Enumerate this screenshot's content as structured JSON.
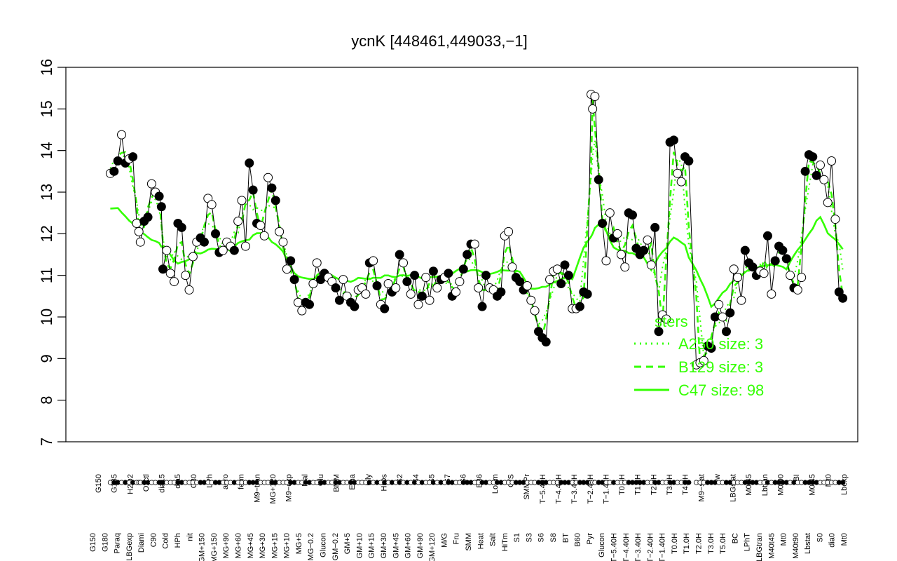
{
  "chart_data": {
    "type": "line",
    "title": "ycnK [448461,449033,−1]",
    "xlabel": "",
    "ylabel": "",
    "ylim": [
      7,
      16
    ],
    "yticks": [
      7,
      8,
      9,
      10,
      11,
      12,
      13,
      14,
      15,
      16
    ],
    "categories": [
      "G150",
      "G180",
      "G135",
      "H2O2",
      "Paraq",
      "Oxctl",
      "LBGexp",
      "dia15",
      "Diami",
      "dia5",
      "C90",
      "C30",
      "Cold",
      "LPh",
      "HPh",
      "aero",
      "nit",
      "ferm",
      "GM+150",
      "M9−tran",
      "MG+150",
      "MG+120",
      "MG+90",
      "MG+60",
      "MG+45",
      "MG+30",
      "MG+15",
      "MG+10",
      "MG+5",
      "MG−0.2",
      "Glucon",
      "GM−0.2",
      "GM+5",
      "GM+10",
      "GM+15",
      "GM+30",
      "GM+45",
      "GM+60",
      "GM+90",
      "GM+120",
      "M9−exp",
      "M/G",
      "Mal",
      "Fru",
      "Glu",
      "SMM",
      "BMM",
      "Heat",
      "Etha",
      "Salt",
      "Gly",
      "HiTm",
      "HiOs",
      "S1",
      "S2",
      "S3",
      "S4",
      "S5",
      "S6",
      "S7",
      "S8",
      "BT",
      "B36",
      "B60",
      "LoTm",
      "Pyr",
      "G/S",
      "Glucon",
      "SMMPr",
      "T−5.40H",
      "T−4.40H",
      "T−3.40H",
      "T−2.40H",
      "T−1.40H",
      "T0.0H",
      "T1.0H",
      "T2.0H",
      "T3.0H",
      "T4.0H",
      "T5.0H",
      "M9−stat",
      "BC",
      "Sw",
      "LBGstat",
      "LPhT",
      "LBGtran",
      "M0t45",
      "M40t45",
      "Lbtran",
      "Mt0",
      "M40t90",
      "M0t90",
      "Lbstat",
      "BI",
      "S0",
      "M0t45",
      "dia0",
      "Lbexp",
      "Mt0"
    ],
    "category_labels_top": [
      "G150",
      "G135",
      "H2O2",
      "Oxctl",
      "dia15",
      "dia5",
      "C30",
      "LPh",
      "aero",
      "ferm",
      "M9−tran",
      "MG+120",
      "M9−exp",
      "Mal",
      "Glu",
      "BMM",
      "Etha",
      "Gly",
      "HiOs",
      "S2",
      "S4",
      "S5",
      "S7",
      "S6",
      "B36",
      "LoTm",
      "G/S",
      "SMMPr",
      "T−5.40H",
      "T−4.40H",
      "T−3.40H",
      "T−2.40H",
      "T−1.40H",
      "T0.0H",
      "T1.0H",
      "T2.0H",
      "T3.0H",
      "T4.0H",
      "M9−stat",
      "Sw",
      "LBGstat",
      "M0t45",
      "Lbtran",
      "M0t90",
      "BI",
      "M0t45",
      "Mt0",
      "Lbexp"
    ],
    "category_labels_bottom": [
      "G150",
      "G180",
      "Paraq",
      "LBGexp",
      "Diami",
      "C90",
      "Cold",
      "HPh",
      "nit",
      "GM+150",
      "MG+150",
      "MG+90",
      "MG+60",
      "MG+45",
      "MG+30",
      "MG+15",
      "MG+10",
      "MG+5",
      "MG−0.2",
      "Glucon",
      "GM−0.2",
      "GM+5",
      "GM+10",
      "GM+15",
      "GM+30",
      "GM+45",
      "GM+60",
      "GM+90",
      "GM+120",
      "M/G",
      "Fru",
      "SMM",
      "Heat",
      "Salt",
      "HiTm",
      "S1",
      "S3",
      "S6",
      "S8",
      "BT",
      "B60",
      "Pyr",
      "Glucon",
      "T−5.40H",
      "T−4.40H",
      "T−3.40H",
      "T−2.40H",
      "T−1.40H",
      "T0.0H",
      "T1.0H",
      "T2.0H",
      "T3.0H",
      "T5.0H",
      "BC",
      "LPhT",
      "LBGtran",
      "M40t45",
      "Mt0",
      "M40t90",
      "Lbstat",
      "S0",
      "dia0",
      "Mt0"
    ],
    "points": [
      [
        0.02,
        13.45,
        "o"
      ],
      [
        0.025,
        13.5,
        "f"
      ],
      [
        0.03,
        13.75,
        "f"
      ],
      [
        0.035,
        14.38,
        "o"
      ],
      [
        0.04,
        13.7,
        "f"
      ],
      [
        0.045,
        13.8,
        "o"
      ],
      [
        0.05,
        13.85,
        "f"
      ],
      [
        0.055,
        12.25,
        "o"
      ],
      [
        0.058,
        12.05,
        "o"
      ],
      [
        0.06,
        11.8,
        "o"
      ],
      [
        0.065,
        12.3,
        "f"
      ],
      [
        0.07,
        12.4,
        "f"
      ],
      [
        0.075,
        13.2,
        "o"
      ],
      [
        0.08,
        13.0,
        "o"
      ],
      [
        0.085,
        12.9,
        "f"
      ],
      [
        0.088,
        12.65,
        "f"
      ],
      [
        0.09,
        11.15,
        "f"
      ],
      [
        0.095,
        11.6,
        "o"
      ],
      [
        0.1,
        11.05,
        "o"
      ],
      [
        0.105,
        10.85,
        "o"
      ],
      [
        0.11,
        12.25,
        "f"
      ],
      [
        0.115,
        12.15,
        "f"
      ],
      [
        0.12,
        11.0,
        "o"
      ],
      [
        0.125,
        10.65,
        "o"
      ],
      [
        0.13,
        11.45,
        "o"
      ],
      [
        0.135,
        11.8,
        "o"
      ],
      [
        0.14,
        11.9,
        "f"
      ],
      [
        0.145,
        11.8,
        "f"
      ],
      [
        0.15,
        12.85,
        "o"
      ],
      [
        0.155,
        12.7,
        "o"
      ],
      [
        0.16,
        12.0,
        "f"
      ],
      [
        0.165,
        11.55,
        "f"
      ],
      [
        0.17,
        11.6,
        "o"
      ],
      [
        0.175,
        11.8,
        "o"
      ],
      [
        0.18,
        11.7,
        "o"
      ],
      [
        0.185,
        11.6,
        "f"
      ],
      [
        0.19,
        12.3,
        "o"
      ],
      [
        0.195,
        12.8,
        "o"
      ],
      [
        0.2,
        11.7,
        "o"
      ],
      [
        0.205,
        13.7,
        "f"
      ],
      [
        0.21,
        13.05,
        "f"
      ],
      [
        0.215,
        12.25,
        "f"
      ],
      [
        0.22,
        12.2,
        "o"
      ],
      [
        0.225,
        11.95,
        "o"
      ],
      [
        0.23,
        13.35,
        "o"
      ],
      [
        0.235,
        13.1,
        "f"
      ],
      [
        0.24,
        12.8,
        "f"
      ],
      [
        0.245,
        12.05,
        "o"
      ],
      [
        0.25,
        11.8,
        "o"
      ],
      [
        0.255,
        11.15,
        "o"
      ],
      [
        0.26,
        11.35,
        "f"
      ],
      [
        0.265,
        10.9,
        "f"
      ],
      [
        0.27,
        10.35,
        "o"
      ],
      [
        0.275,
        10.15,
        "o"
      ],
      [
        0.28,
        10.35,
        "f"
      ],
      [
        0.285,
        10.3,
        "f"
      ],
      [
        0.29,
        10.8,
        "o"
      ],
      [
        0.295,
        11.3,
        "o"
      ],
      [
        0.3,
        10.9,
        "f"
      ],
      [
        0.305,
        11.05,
        "f"
      ],
      [
        0.31,
        10.95,
        "o"
      ],
      [
        0.315,
        10.85,
        "o"
      ],
      [
        0.32,
        10.7,
        "f"
      ],
      [
        0.325,
        10.4,
        "f"
      ],
      [
        0.33,
        10.9,
        "o"
      ],
      [
        0.335,
        10.5,
        "o"
      ],
      [
        0.34,
        10.35,
        "f"
      ],
      [
        0.345,
        10.25,
        "f"
      ],
      [
        0.35,
        10.65,
        "o"
      ],
      [
        0.355,
        10.7,
        "o"
      ],
      [
        0.36,
        10.55,
        "o"
      ],
      [
        0.365,
        11.3,
        "f"
      ],
      [
        0.37,
        11.35,
        "o"
      ],
      [
        0.375,
        10.75,
        "f"
      ],
      [
        0.38,
        10.3,
        "o"
      ],
      [
        0.385,
        10.2,
        "f"
      ],
      [
        0.39,
        10.8,
        "o"
      ],
      [
        0.395,
        10.6,
        "f"
      ],
      [
        0.4,
        10.7,
        "o"
      ],
      [
        0.405,
        11.5,
        "f"
      ],
      [
        0.41,
        11.3,
        "o"
      ],
      [
        0.415,
        10.85,
        "f"
      ],
      [
        0.42,
        10.55,
        "o"
      ],
      [
        0.425,
        11.0,
        "f"
      ],
      [
        0.43,
        10.3,
        "o"
      ],
      [
        0.435,
        10.5,
        "f"
      ],
      [
        0.44,
        10.95,
        "o"
      ],
      [
        0.445,
        10.4,
        "o"
      ],
      [
        0.45,
        11.1,
        "f"
      ],
      [
        0.455,
        10.7,
        "o"
      ],
      [
        0.46,
        10.9,
        "f"
      ],
      [
        0.465,
        10.95,
        "o"
      ],
      [
        0.47,
        11.05,
        "f"
      ],
      [
        0.475,
        10.5,
        "f"
      ],
      [
        0.48,
        10.6,
        "o"
      ],
      [
        0.485,
        10.85,
        "o"
      ],
      [
        0.49,
        11.15,
        "f"
      ],
      [
        0.495,
        11.5,
        "f"
      ],
      [
        0.5,
        11.75,
        "f"
      ],
      [
        0.505,
        11.75,
        "o"
      ],
      [
        0.51,
        10.7,
        "o"
      ],
      [
        0.515,
        10.25,
        "f"
      ],
      [
        0.52,
        11.0,
        "f"
      ],
      [
        0.525,
        10.7,
        "o"
      ],
      [
        0.53,
        10.65,
        "o"
      ],
      [
        0.535,
        10.5,
        "f"
      ],
      [
        0.54,
        10.6,
        "f"
      ],
      [
        0.545,
        11.95,
        "o"
      ],
      [
        0.55,
        12.05,
        "o"
      ],
      [
        0.555,
        11.2,
        "o"
      ],
      [
        0.56,
        10.95,
        "f"
      ],
      [
        0.565,
        10.85,
        "f"
      ],
      [
        0.57,
        10.65,
        "f"
      ],
      [
        0.575,
        10.75,
        "o"
      ],
      [
        0.58,
        10.4,
        "o"
      ],
      [
        0.585,
        10.15,
        "o"
      ],
      [
        0.59,
        9.65,
        "f"
      ],
      [
        0.595,
        9.5,
        "f"
      ],
      [
        0.6,
        9.4,
        "f"
      ],
      [
        0.605,
        10.9,
        "o"
      ],
      [
        0.61,
        11.1,
        "o"
      ],
      [
        0.615,
        11.15,
        "o"
      ],
      [
        0.62,
        10.8,
        "f"
      ],
      [
        0.625,
        11.25,
        "f"
      ],
      [
        0.63,
        11.0,
        "f"
      ],
      [
        0.635,
        10.2,
        "o"
      ],
      [
        0.64,
        10.2,
        "o"
      ],
      [
        0.645,
        10.25,
        "f"
      ],
      [
        0.65,
        10.6,
        "f"
      ],
      [
        0.655,
        10.55,
        "f"
      ],
      [
        0.66,
        15.35,
        "o"
      ],
      [
        0.662,
        15.0,
        "o"
      ],
      [
        0.665,
        15.3,
        "o"
      ],
      [
        0.67,
        13.3,
        "f"
      ],
      [
        0.675,
        12.25,
        "f"
      ],
      [
        0.68,
        11.35,
        "o"
      ],
      [
        0.685,
        12.5,
        "o"
      ],
      [
        0.69,
        11.9,
        "f"
      ],
      [
        0.695,
        12.0,
        "o"
      ],
      [
        0.7,
        11.5,
        "o"
      ],
      [
        0.705,
        11.2,
        "o"
      ],
      [
        0.71,
        12.5,
        "f"
      ],
      [
        0.715,
        12.45,
        "f"
      ],
      [
        0.72,
        11.65,
        "f"
      ],
      [
        0.725,
        11.5,
        "f"
      ],
      [
        0.73,
        11.6,
        "f"
      ],
      [
        0.735,
        11.85,
        "o"
      ],
      [
        0.74,
        11.25,
        "o"
      ],
      [
        0.745,
        12.15,
        "f"
      ],
      [
        0.75,
        9.65,
        "f"
      ],
      [
        0.755,
        10.05,
        "o"
      ],
      [
        0.76,
        9.95,
        "o"
      ],
      [
        0.765,
        14.2,
        "f"
      ],
      [
        0.77,
        14.25,
        "f"
      ],
      [
        0.775,
        13.45,
        "o"
      ],
      [
        0.78,
        13.25,
        "o"
      ],
      [
        0.785,
        13.85,
        "f"
      ],
      [
        0.79,
        13.75,
        "f"
      ],
      [
        0.8,
        8.85,
        "o"
      ],
      [
        0.805,
        8.9,
        "o"
      ],
      [
        0.81,
        8.95,
        "o"
      ],
      [
        0.815,
        9.3,
        "f"
      ],
      [
        0.82,
        9.25,
        "f"
      ],
      [
        0.825,
        10.0,
        "f"
      ],
      [
        0.83,
        10.3,
        "o"
      ],
      [
        0.835,
        10.0,
        "o"
      ],
      [
        0.84,
        9.65,
        "f"
      ],
      [
        0.845,
        10.1,
        "f"
      ],
      [
        0.85,
        11.15,
        "o"
      ],
      [
        0.855,
        10.95,
        "o"
      ],
      [
        0.86,
        10.4,
        "o"
      ],
      [
        0.865,
        11.6,
        "f"
      ],
      [
        0.87,
        11.3,
        "f"
      ],
      [
        0.875,
        11.2,
        "f"
      ],
      [
        0.88,
        11.0,
        "f"
      ],
      [
        0.885,
        11.1,
        "o"
      ],
      [
        0.89,
        11.05,
        "o"
      ],
      [
        0.895,
        11.95,
        "f"
      ],
      [
        0.9,
        10.55,
        "o"
      ],
      [
        0.905,
        11.35,
        "f"
      ],
      [
        0.91,
        11.7,
        "f"
      ],
      [
        0.915,
        11.6,
        "f"
      ],
      [
        0.92,
        11.4,
        "f"
      ],
      [
        0.925,
        11.0,
        "o"
      ],
      [
        0.93,
        10.7,
        "f"
      ],
      [
        0.935,
        10.65,
        "o"
      ],
      [
        0.94,
        10.95,
        "o"
      ],
      [
        0.945,
        13.5,
        "f"
      ],
      [
        0.95,
        13.9,
        "f"
      ],
      [
        0.955,
        13.85,
        "f"
      ],
      [
        0.96,
        13.4,
        "f"
      ],
      [
        0.965,
        13.65,
        "o"
      ],
      [
        0.97,
        13.3,
        "o"
      ],
      [
        0.975,
        12.75,
        "o"
      ],
      [
        0.98,
        13.75,
        "o"
      ],
      [
        0.985,
        12.35,
        "o"
      ],
      [
        0.99,
        10.6,
        "f"
      ],
      [
        0.995,
        10.45,
        "f"
      ]
    ],
    "series": [
      {
        "name": "A250 size: 3",
        "style": "dotted",
        "color": "#33ff00"
      },
      {
        "name": "B129 size: 3",
        "style": "dashed",
        "color": "#33ff00"
      },
      {
        "name": "C47 size: 98",
        "style": "solid",
        "color": "#33ff00"
      }
    ],
    "legend_title": "sters",
    "legend_position": "bottom-right",
    "grid": false
  }
}
